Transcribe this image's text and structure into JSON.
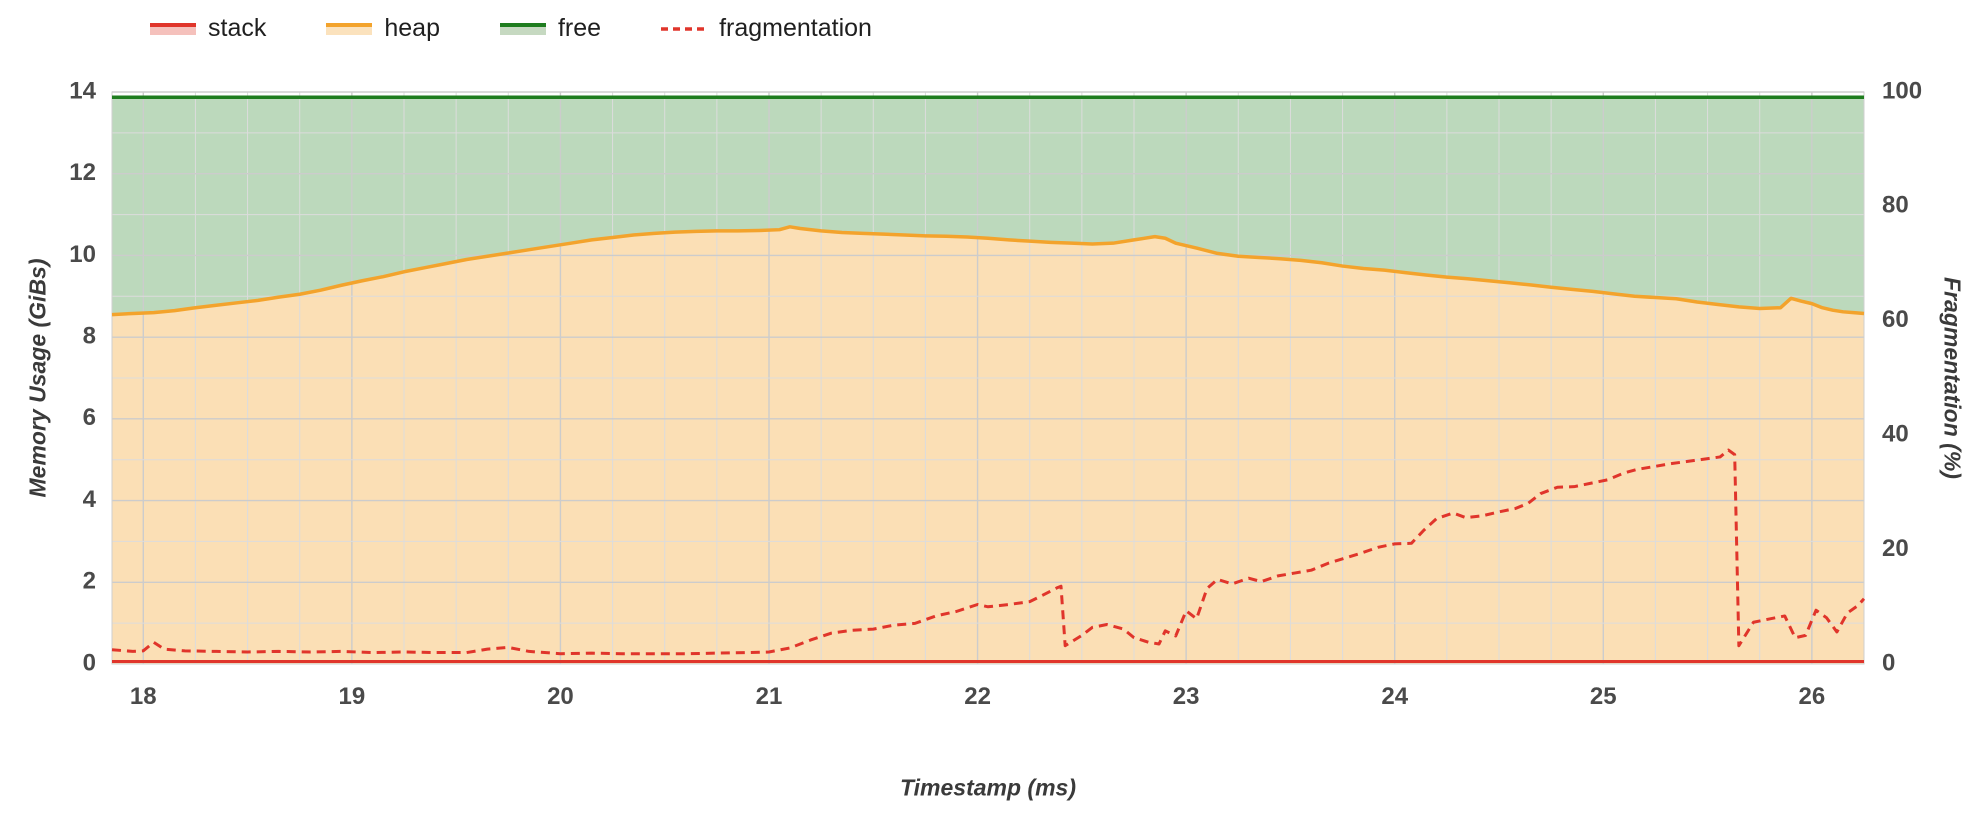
{
  "page": {
    "background": "#ffffff"
  },
  "legend": {
    "items": [
      {
        "label": "stack",
        "swatch": "area",
        "line_color": "#e0352b",
        "fill_color": "#f5c1bc"
      },
      {
        "label": "heap",
        "swatch": "area",
        "line_color": "#f3a32c",
        "fill_color": "#fbe2bd"
      },
      {
        "label": "free",
        "swatch": "area",
        "line_color": "#1f7d1f",
        "fill_color": "#c6d9c1"
      },
      {
        "label": "fragmentation",
        "swatch": "dashed",
        "line_color": "#e0352b"
      }
    ]
  },
  "chart_data": {
    "type": "area",
    "title": "",
    "xlabel": "Timestamp (ms)",
    "ylabel_left": "Memory Usage (GiBs)",
    "ylabel_right": "Fragmentation (%)",
    "x_range": [
      17.85,
      26.25
    ],
    "x_ticks": [
      18,
      19,
      20,
      21,
      22,
      23,
      24,
      25,
      26
    ],
    "y_left_range": [
      0,
      14
    ],
    "y_left_ticks": [
      0,
      2,
      4,
      6,
      8,
      10,
      12,
      14
    ],
    "y_right_range": [
      0,
      100
    ],
    "y_right_ticks": [
      0,
      20,
      40,
      60,
      80,
      100
    ],
    "grid": {
      "color": "#dcdcdc",
      "major_color": "#cccccc",
      "x_minor_step": 0.25,
      "y_minor_step": 1
    },
    "legend_position": "top-left",
    "series": [
      {
        "name": "stack",
        "axis": "left",
        "style": "line",
        "color": "#e0352b",
        "value": 0.06
      },
      {
        "name": "heap",
        "axis": "left",
        "style": "area",
        "color": "#f3a32c",
        "fill_opacity": 0.35,
        "points": [
          [
            17.85,
            8.55
          ],
          [
            17.95,
            8.58
          ],
          [
            18.05,
            8.6
          ],
          [
            18.15,
            8.65
          ],
          [
            18.25,
            8.72
          ],
          [
            18.35,
            8.78
          ],
          [
            18.45,
            8.84
          ],
          [
            18.55,
            8.9
          ],
          [
            18.65,
            8.98
          ],
          [
            18.75,
            9.05
          ],
          [
            18.85,
            9.15
          ],
          [
            18.95,
            9.27
          ],
          [
            19.05,
            9.38
          ],
          [
            19.15,
            9.48
          ],
          [
            19.25,
            9.6
          ],
          [
            19.35,
            9.7
          ],
          [
            19.45,
            9.8
          ],
          [
            19.55,
            9.9
          ],
          [
            19.65,
            9.98
          ],
          [
            19.75,
            10.06
          ],
          [
            19.85,
            10.14
          ],
          [
            19.95,
            10.22
          ],
          [
            20.05,
            10.3
          ],
          [
            20.15,
            10.38
          ],
          [
            20.25,
            10.44
          ],
          [
            20.35,
            10.5
          ],
          [
            20.45,
            10.54
          ],
          [
            20.55,
            10.57
          ],
          [
            20.65,
            10.59
          ],
          [
            20.75,
            10.6
          ],
          [
            20.85,
            10.6
          ],
          [
            20.95,
            10.61
          ],
          [
            21.05,
            10.63
          ],
          [
            21.1,
            10.7
          ],
          [
            21.15,
            10.66
          ],
          [
            21.25,
            10.6
          ],
          [
            21.35,
            10.56
          ],
          [
            21.45,
            10.54
          ],
          [
            21.55,
            10.52
          ],
          [
            21.65,
            10.5
          ],
          [
            21.75,
            10.48
          ],
          [
            21.85,
            10.47
          ],
          [
            21.95,
            10.45
          ],
          [
            22.05,
            10.42
          ],
          [
            22.15,
            10.38
          ],
          [
            22.25,
            10.35
          ],
          [
            22.35,
            10.32
          ],
          [
            22.45,
            10.3
          ],
          [
            22.55,
            10.28
          ],
          [
            22.65,
            10.3
          ],
          [
            22.75,
            10.38
          ],
          [
            22.85,
            10.46
          ],
          [
            22.9,
            10.42
          ],
          [
            22.95,
            10.3
          ],
          [
            23.05,
            10.18
          ],
          [
            23.15,
            10.05
          ],
          [
            23.25,
            9.98
          ],
          [
            23.35,
            9.95
          ],
          [
            23.45,
            9.92
          ],
          [
            23.55,
            9.88
          ],
          [
            23.65,
            9.82
          ],
          [
            23.75,
            9.74
          ],
          [
            23.85,
            9.68
          ],
          [
            23.95,
            9.64
          ],
          [
            24.05,
            9.58
          ],
          [
            24.15,
            9.52
          ],
          [
            24.25,
            9.47
          ],
          [
            24.35,
            9.43
          ],
          [
            24.45,
            9.38
          ],
          [
            24.55,
            9.33
          ],
          [
            24.65,
            9.28
          ],
          [
            24.75,
            9.22
          ],
          [
            24.85,
            9.17
          ],
          [
            24.95,
            9.12
          ],
          [
            25.05,
            9.06
          ],
          [
            25.15,
            9.0
          ],
          [
            25.25,
            8.97
          ],
          [
            25.35,
            8.94
          ],
          [
            25.45,
            8.86
          ],
          [
            25.55,
            8.8
          ],
          [
            25.65,
            8.74
          ],
          [
            25.75,
            8.7
          ],
          [
            25.85,
            8.72
          ],
          [
            25.9,
            8.95
          ],
          [
            25.95,
            8.88
          ],
          [
            26.0,
            8.82
          ],
          [
            26.05,
            8.72
          ],
          [
            26.1,
            8.66
          ],
          [
            26.15,
            8.62
          ],
          [
            26.2,
            8.6
          ],
          [
            26.25,
            8.58
          ]
        ]
      },
      {
        "name": "free",
        "axis": "left",
        "style": "band_to_top",
        "color": "#1f7d1f",
        "fill_color": "#4e9a4e",
        "fill_opacity": 0.38,
        "top": 13.87
      },
      {
        "name": "fragmentation",
        "axis": "right",
        "style": "dashed_line",
        "color": "#e0352b",
        "points": [
          [
            17.85,
            2.5
          ],
          [
            17.95,
            2.2
          ],
          [
            18.0,
            2.3
          ],
          [
            18.05,
            3.8
          ],
          [
            18.1,
            2.6
          ],
          [
            18.2,
            2.3
          ],
          [
            18.35,
            2.2
          ],
          [
            18.5,
            2.1
          ],
          [
            18.65,
            2.2
          ],
          [
            18.8,
            2.1
          ],
          [
            18.95,
            2.2
          ],
          [
            19.1,
            2.0
          ],
          [
            19.25,
            2.1
          ],
          [
            19.4,
            2.0
          ],
          [
            19.55,
            2.0
          ],
          [
            19.65,
            2.6
          ],
          [
            19.75,
            2.9
          ],
          [
            19.85,
            2.2
          ],
          [
            20.0,
            1.8
          ],
          [
            20.15,
            1.9
          ],
          [
            20.3,
            1.8
          ],
          [
            20.45,
            1.8
          ],
          [
            20.6,
            1.8
          ],
          [
            20.75,
            1.9
          ],
          [
            20.9,
            2.0
          ],
          [
            21.0,
            2.1
          ],
          [
            21.1,
            2.8
          ],
          [
            21.2,
            4.2
          ],
          [
            21.3,
            5.4
          ],
          [
            21.4,
            5.9
          ],
          [
            21.5,
            6.1
          ],
          [
            21.6,
            6.8
          ],
          [
            21.7,
            7.1
          ],
          [
            21.8,
            8.4
          ],
          [
            21.9,
            9.2
          ],
          [
            22.0,
            10.4
          ],
          [
            22.05,
            10.0
          ],
          [
            22.15,
            10.4
          ],
          [
            22.25,
            10.9
          ],
          [
            22.3,
            11.8
          ],
          [
            22.38,
            13.3
          ],
          [
            22.4,
            13.6
          ],
          [
            22.42,
            3.2
          ],
          [
            22.5,
            5.0
          ],
          [
            22.55,
            6.4
          ],
          [
            22.62,
            6.9
          ],
          [
            22.7,
            6.1
          ],
          [
            22.75,
            4.6
          ],
          [
            22.82,
            3.8
          ],
          [
            22.87,
            3.5
          ],
          [
            22.9,
            5.8
          ],
          [
            22.95,
            4.9
          ],
          [
            23.0,
            9.3
          ],
          [
            23.05,
            7.9
          ],
          [
            23.1,
            13.2
          ],
          [
            23.15,
            14.8
          ],
          [
            23.22,
            14.0
          ],
          [
            23.3,
            15.0
          ],
          [
            23.36,
            14.4
          ],
          [
            23.44,
            15.4
          ],
          [
            23.52,
            15.9
          ],
          [
            23.6,
            16.4
          ],
          [
            23.68,
            17.6
          ],
          [
            23.76,
            18.5
          ],
          [
            23.84,
            19.4
          ],
          [
            23.92,
            20.4
          ],
          [
            24.0,
            21.0
          ],
          [
            24.08,
            21.1
          ],
          [
            24.14,
            23.4
          ],
          [
            24.2,
            25.4
          ],
          [
            24.28,
            26.4
          ],
          [
            24.34,
            25.6
          ],
          [
            24.42,
            25.9
          ],
          [
            24.5,
            26.6
          ],
          [
            24.58,
            27.2
          ],
          [
            24.64,
            28.1
          ],
          [
            24.7,
            29.8
          ],
          [
            24.78,
            30.9
          ],
          [
            24.86,
            31.0
          ],
          [
            24.94,
            31.6
          ],
          [
            25.02,
            32.2
          ],
          [
            25.1,
            33.4
          ],
          [
            25.16,
            34.0
          ],
          [
            25.24,
            34.5
          ],
          [
            25.32,
            35.0
          ],
          [
            25.4,
            35.4
          ],
          [
            25.48,
            35.8
          ],
          [
            25.56,
            36.2
          ],
          [
            25.6,
            37.4
          ],
          [
            25.63,
            36.6
          ],
          [
            25.65,
            3.2
          ],
          [
            25.72,
            7.3
          ],
          [
            25.8,
            7.9
          ],
          [
            25.87,
            8.4
          ],
          [
            25.92,
            4.6
          ],
          [
            25.97,
            5.0
          ],
          [
            26.02,
            9.4
          ],
          [
            26.07,
            8.1
          ],
          [
            26.12,
            5.6
          ],
          [
            26.17,
            8.9
          ],
          [
            26.22,
            10.2
          ],
          [
            26.25,
            11.4
          ]
        ]
      }
    ]
  }
}
